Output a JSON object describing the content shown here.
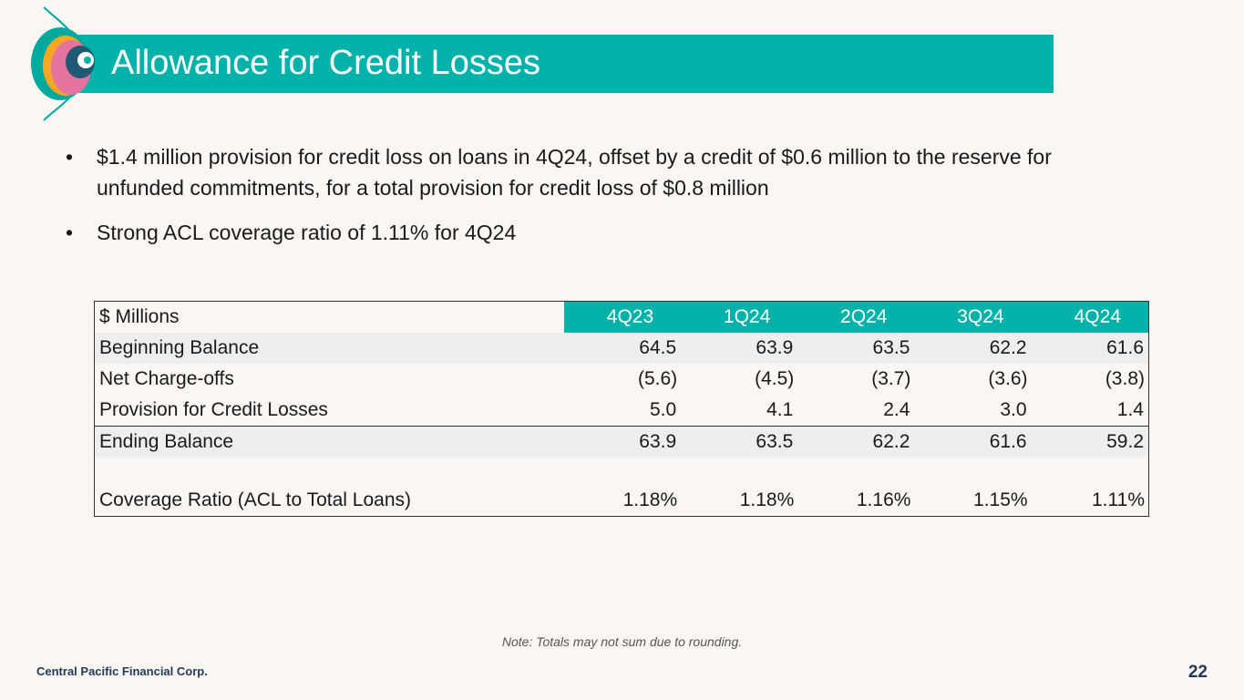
{
  "title": "Allowance for Credit Losses",
  "bullets": [
    "$1.4 million provision for credit loss on loans in 4Q24, offset by a credit of $0.6 million to the reserve for unfunded commitments, for a total provision for credit loss of $0.8 million",
    "Strong ACL coverage ratio of 1.11% for 4Q24"
  ],
  "bullet_marker": "•",
  "table": {
    "header_label": "$ Millions",
    "quarters": [
      "4Q23",
      "1Q24",
      "2Q24",
      "3Q24",
      "4Q24"
    ],
    "rows": [
      {
        "label": "Beginning Balance",
        "values": [
          "64.5",
          "63.9",
          "63.5",
          "62.2",
          "61.6"
        ]
      },
      {
        "label": "Net Charge-offs",
        "values": [
          "(5.6)",
          "(4.5)",
          "(3.7)",
          "(3.6)",
          "(3.8)"
        ]
      },
      {
        "label": "Provision for Credit Losses",
        "values": [
          "5.0",
          "4.1",
          "2.4",
          "3.0",
          "1.4"
        ]
      },
      {
        "label": "Ending Balance",
        "values": [
          "63.9",
          "63.5",
          "62.2",
          "61.6",
          "59.2"
        ]
      },
      {
        "label": "Coverage Ratio (ACL to Total Loans)",
        "values": [
          "1.18%",
          "1.18%",
          "1.16%",
          "1.15%",
          "1.11%"
        ]
      }
    ]
  },
  "note": "Note: Totals may not sum due to rounding.",
  "footer": {
    "company": "Central Pacific Financial Corp.",
    "page_number": "22"
  },
  "colors": {
    "accent": "#00b2a9",
    "background": "#f9f6f3",
    "footer_text": "#1f3a52"
  }
}
